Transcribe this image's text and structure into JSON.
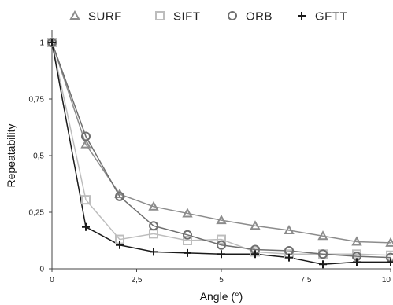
{
  "chart_data": {
    "type": "line",
    "title": "",
    "xlabel": "Angle (°)",
    "ylabel": "Repeatability",
    "xlim": [
      0,
      10
    ],
    "ylim": [
      0,
      1
    ],
    "x_ticks": [
      0,
      2.5,
      5,
      7.5,
      10
    ],
    "x_tick_labels": [
      "0",
      "2,5",
      "5",
      "7,5",
      "10"
    ],
    "y_ticks": [
      0,
      0.25,
      0.5,
      0.75,
      1
    ],
    "y_tick_labels": [
      "0",
      "0,25",
      "0,5",
      "0,75",
      "1"
    ],
    "grid": false,
    "legend_position": "top",
    "x": [
      0,
      1,
      2,
      3,
      4,
      5,
      6,
      7,
      8,
      9,
      10
    ],
    "series": [
      {
        "name": "SURF",
        "marker": "triangle",
        "color": "#8c8c8c",
        "values": [
          1,
          0.55,
          0.33,
          0.275,
          0.245,
          0.215,
          0.19,
          0.17,
          0.145,
          0.12,
          0.115
        ]
      },
      {
        "name": "SIFT",
        "marker": "square",
        "color": "#bdbdbd",
        "values": [
          1,
          0.305,
          0.13,
          0.155,
          0.125,
          0.13,
          0.075,
          0.065,
          0.065,
          0.065,
          0.06
        ]
      },
      {
        "name": "ORB",
        "marker": "circle",
        "color": "#6f6f6f",
        "values": [
          1,
          0.585,
          0.32,
          0.19,
          0.15,
          0.105,
          0.085,
          0.08,
          0.065,
          0.055,
          0.05
        ]
      },
      {
        "name": "GFTT",
        "marker": "plus",
        "color": "#1a1a1a",
        "values": [
          1,
          0.185,
          0.105,
          0.075,
          0.07,
          0.065,
          0.065,
          0.05,
          0.02,
          0.03,
          0.03
        ]
      }
    ]
  }
}
